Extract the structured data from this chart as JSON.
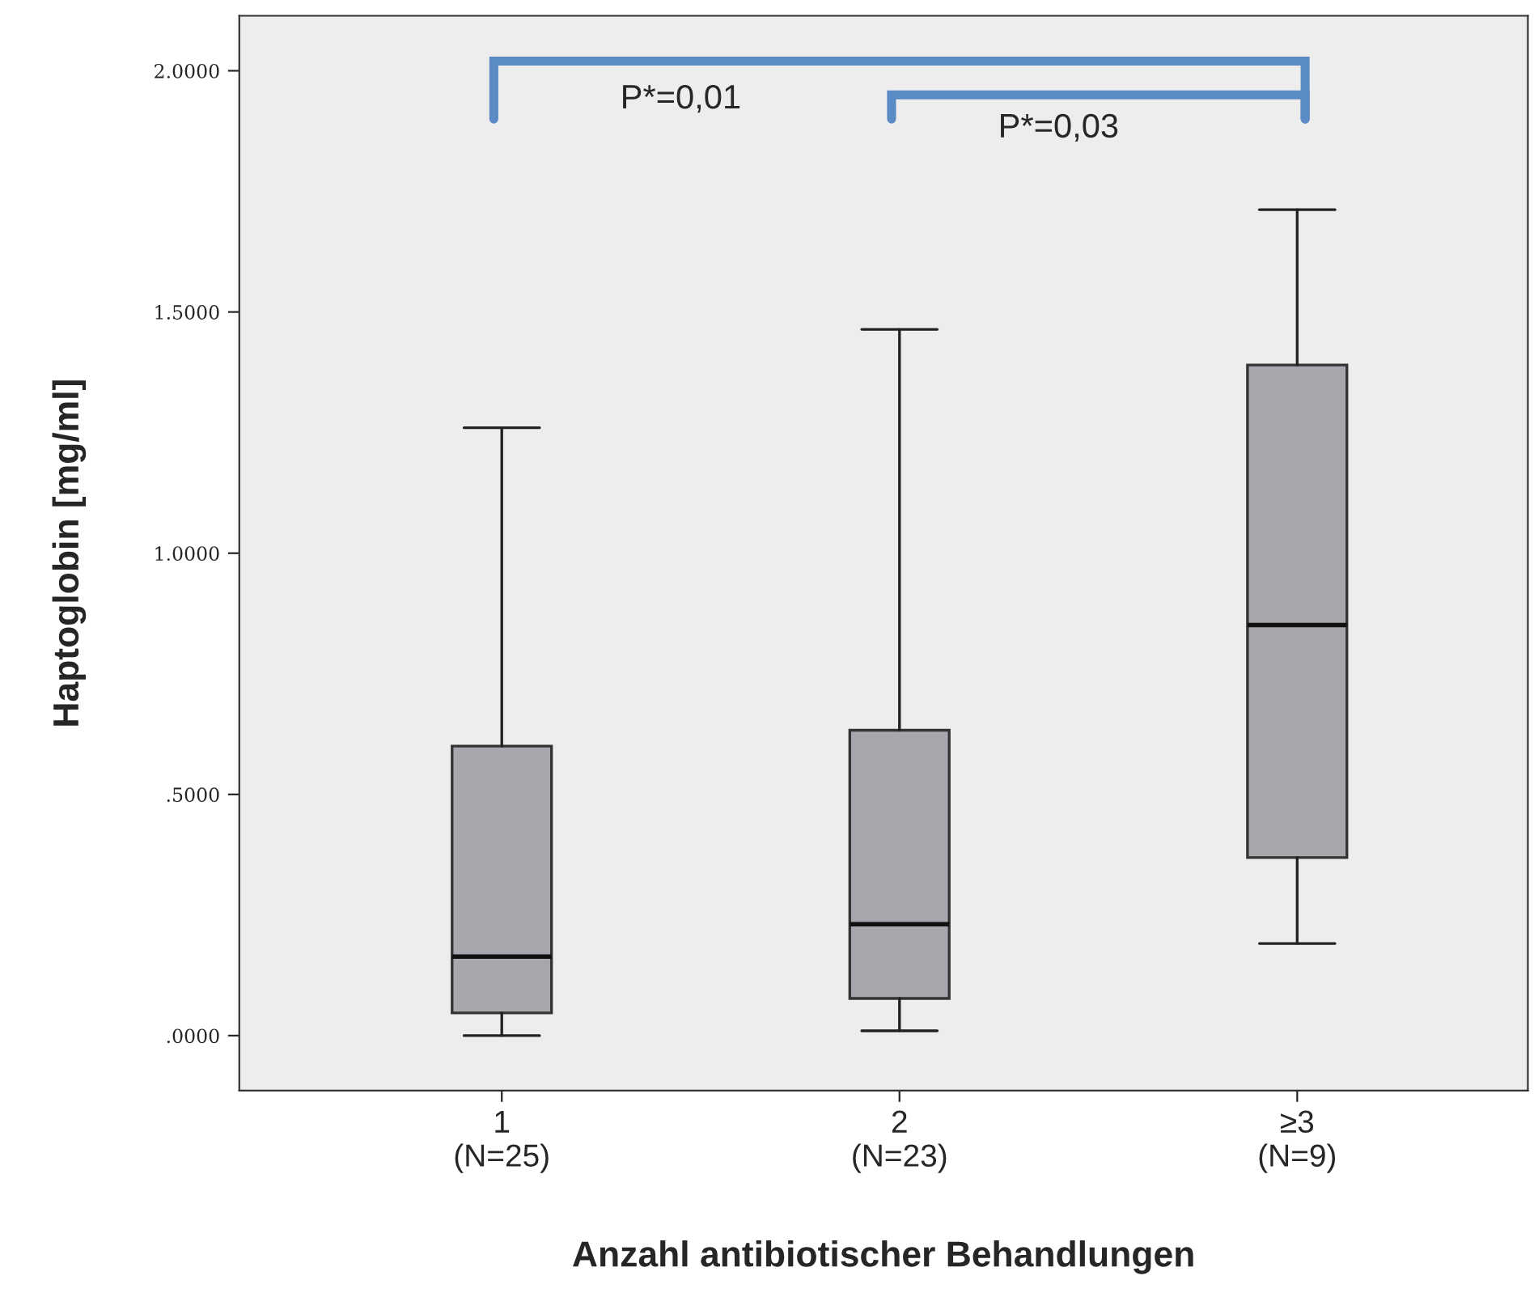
{
  "chart_data": {
    "type": "box",
    "xlabel": "Anzahl antibiotischer Behandlungen",
    "ylabel": "Haptoglobin [mg/ml]",
    "categories": [
      "1\n(N=25)",
      "2\n(N=23)",
      "≥3\n(N=9)"
    ],
    "boxes": [
      {
        "low": 0.0,
        "q1": 0.047,
        "median": 0.164,
        "q3": 0.6,
        "high": 1.26
      },
      {
        "low": 0.01,
        "q1": 0.077,
        "median": 0.231,
        "q3": 0.633,
        "high": 1.464
      },
      {
        "low": 0.191,
        "q1": 0.369,
        "median": 0.851,
        "q3": 1.39,
        "high": 1.712
      }
    ],
    "color": "#a7a7ae",
    "ylim": [
      -0.114,
      2.114
    ],
    "yticks": [
      {
        "value": 0,
        "label": ".0000"
      },
      {
        "value": 0.5,
        "label": ".5000"
      },
      {
        "value": 1.0,
        "label": "1.0000"
      },
      {
        "value": 1.5,
        "label": "1.5000"
      },
      {
        "value": 2.0,
        "label": "2.0000"
      }
    ],
    "grid": false,
    "annotations": [
      "P*=0,01",
      "P*=0,03"
    ]
  }
}
